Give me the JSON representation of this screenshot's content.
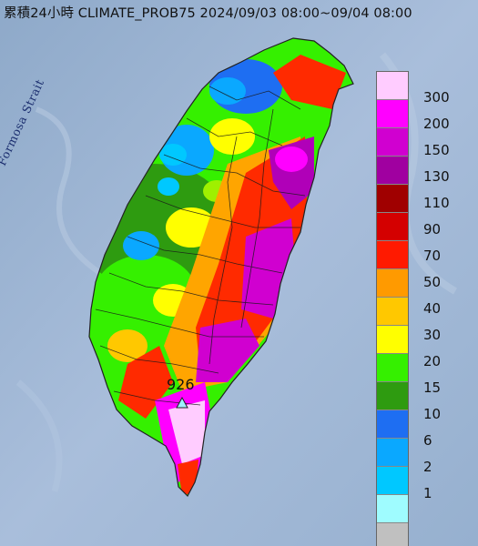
{
  "title": "累積24小時 CLIMATE_PROB75 2024/09/03 08:00~09/04 08:00",
  "labels": {
    "strait": "Formosa Strait",
    "peak_value": "926"
  },
  "legend": {
    "labels": [
      "300",
      "200",
      "150",
      "130",
      "110",
      "90",
      "70",
      "50",
      "40",
      "30",
      "20",
      "15",
      "10",
      "6",
      "2",
      "1"
    ],
    "colors": [
      "#ffccff",
      "#ff00ff",
      "#d000d0",
      "#a000a0",
      "#a00000",
      "#d40000",
      "#ff1a00",
      "#ff9a00",
      "#ffc800",
      "#ffff00",
      "#35f000",
      "#2e9b10",
      "#1e6ef2",
      "#0aa8ff",
      "#00c8ff",
      "#9ffcff",
      "#c0c0c0"
    ]
  }
}
